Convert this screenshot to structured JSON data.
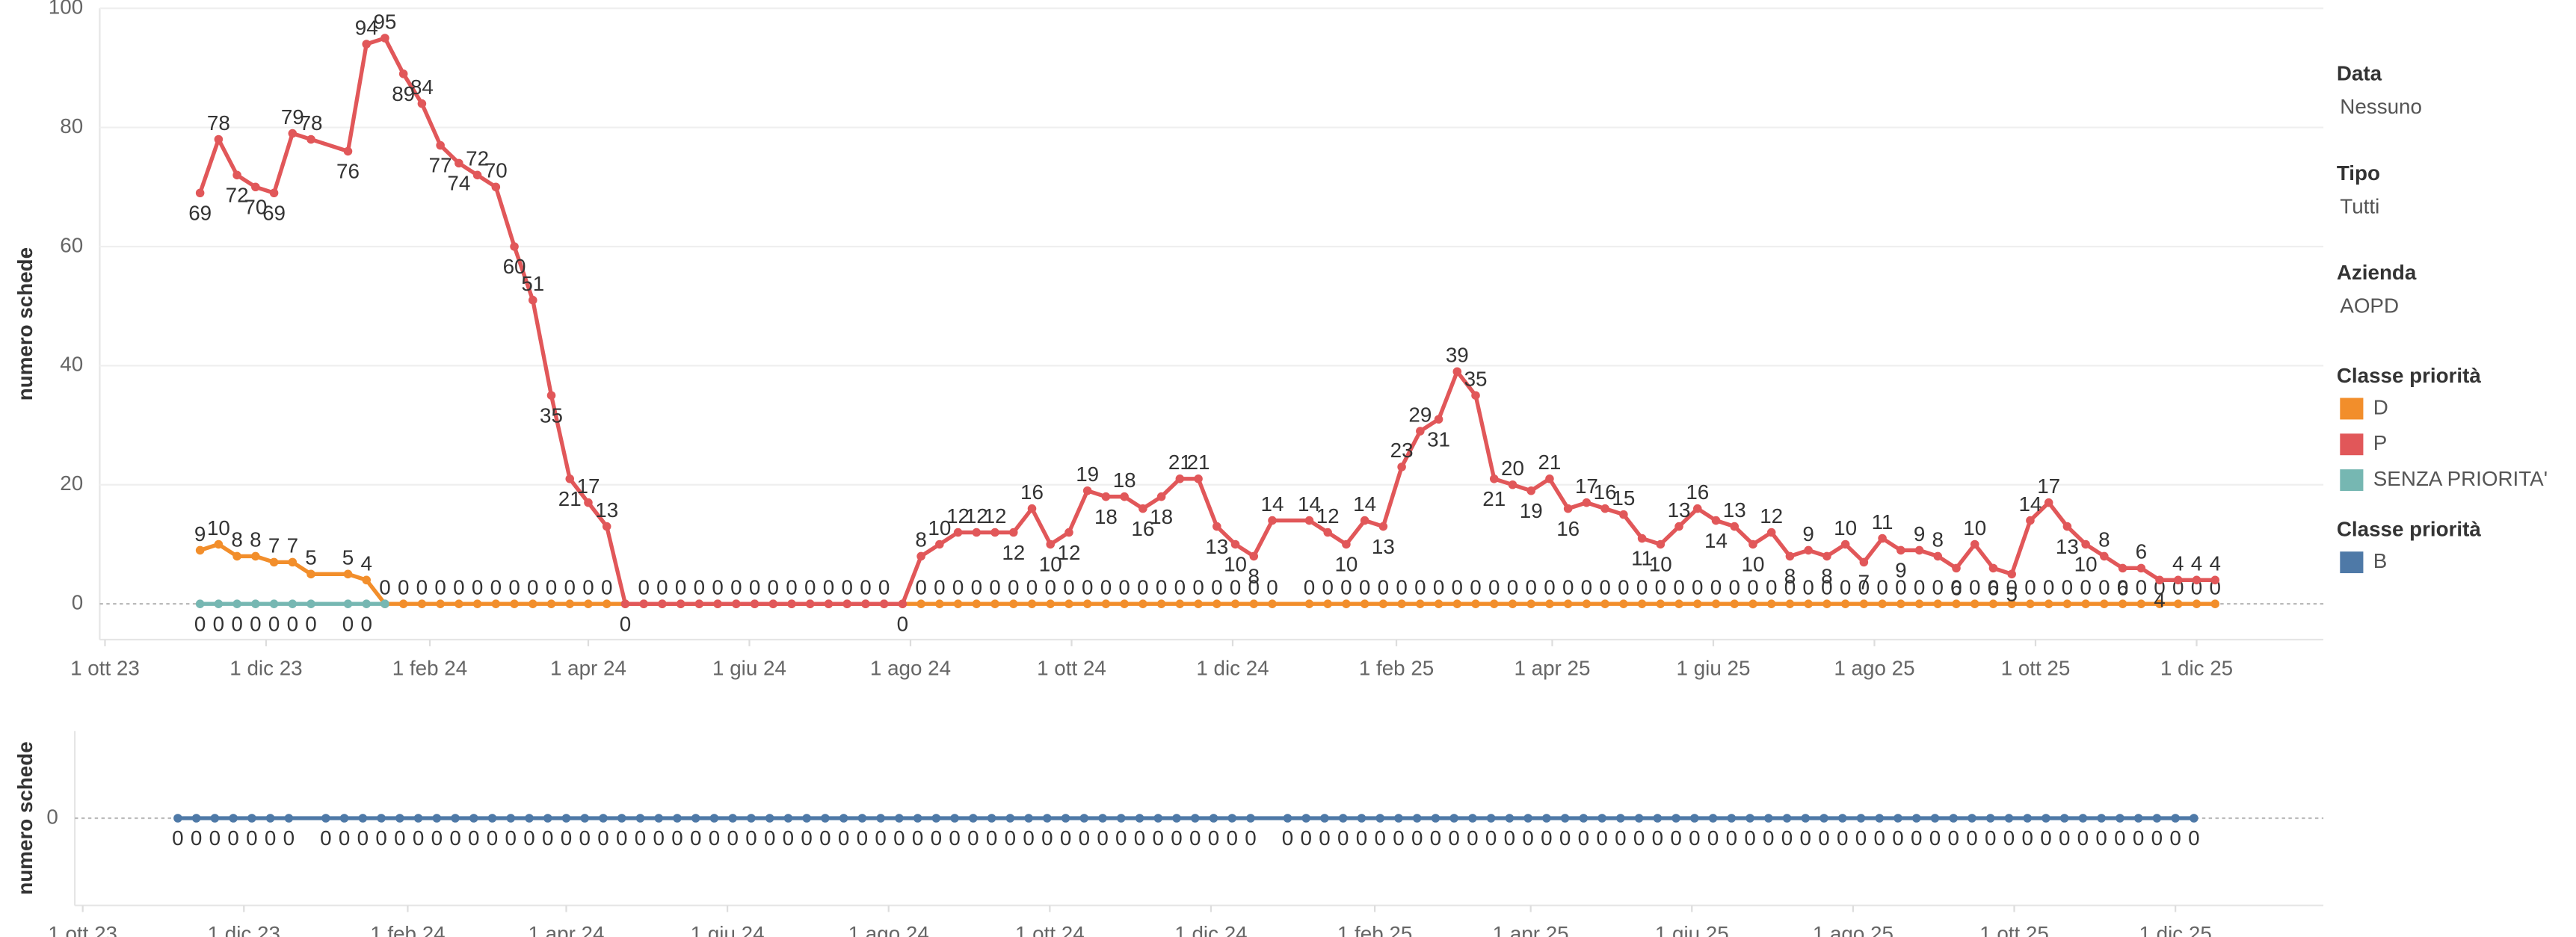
{
  "filters": [
    {
      "label": "Data",
      "value": "Nessuno"
    },
    {
      "label": "Tipo",
      "value": "Tutti"
    },
    {
      "label": "Azienda",
      "value": "AOPD"
    }
  ],
  "chart_data": [
    {
      "type": "line",
      "y_label": "numero schede",
      "legend_title": "Classe priorità",
      "x": [
        "2023-11-06",
        "2023-11-13",
        "2023-11-20",
        "2023-11-27",
        "2023-12-04",
        "2023-12-11",
        "2023-12-18",
        "2024-01-01",
        "2024-01-08",
        "2024-01-15",
        "2024-01-22",
        "2024-01-29",
        "2024-02-05",
        "2024-02-12",
        "2024-02-19",
        "2024-02-26",
        "2024-03-04",
        "2024-03-11",
        "2024-03-18",
        "2024-03-25",
        "2024-04-01",
        "2024-04-08",
        "2024-04-15",
        "2024-04-22",
        "2024-04-29",
        "2024-05-06",
        "2024-05-13",
        "2024-05-20",
        "2024-05-27",
        "2024-06-03",
        "2024-06-10",
        "2024-06-17",
        "2024-06-24",
        "2024-07-01",
        "2024-07-08",
        "2024-07-15",
        "2024-07-22",
        "2024-07-29",
        "2024-08-05",
        "2024-08-12",
        "2024-08-19",
        "2024-08-26",
        "2024-09-02",
        "2024-09-09",
        "2024-09-16",
        "2024-09-23",
        "2024-09-30",
        "2024-10-07",
        "2024-10-14",
        "2024-10-21",
        "2024-10-28",
        "2024-11-04",
        "2024-11-11",
        "2024-11-18",
        "2024-11-25",
        "2024-12-02",
        "2024-12-09",
        "2024-12-16",
        "2024-12-30",
        "2025-01-06",
        "2025-01-13",
        "2025-01-20",
        "2025-01-27",
        "2025-02-03",
        "2025-02-10",
        "2025-02-17",
        "2025-02-24",
        "2025-03-03",
        "2025-03-10",
        "2025-03-17",
        "2025-03-24",
        "2025-03-31",
        "2025-04-07",
        "2025-04-14",
        "2025-04-21",
        "2025-04-28",
        "2025-05-05",
        "2025-05-12",
        "2025-05-19",
        "2025-05-26",
        "2025-06-02",
        "2025-06-09",
        "2025-06-16",
        "2025-06-23",
        "2025-06-30",
        "2025-07-07",
        "2025-07-14",
        "2025-07-21",
        "2025-07-28",
        "2025-08-04",
        "2025-08-11",
        "2025-08-18",
        "2025-08-25",
        "2025-09-01",
        "2025-09-08",
        "2025-09-15",
        "2025-09-22",
        "2025-09-29",
        "2025-10-06",
        "2025-10-13",
        "2025-10-20",
        "2025-10-27",
        "2025-11-03",
        "2025-11-10",
        "2025-11-17",
        "2025-11-24",
        "2025-12-01",
        "2025-12-08"
      ],
      "series": [
        {
          "name": "D",
          "color": "#f28e2b",
          "values": [
            9,
            10,
            8,
            8,
            7,
            7,
            5,
            5,
            4,
            0,
            0,
            0,
            0,
            0,
            0,
            0,
            0,
            0,
            0,
            0,
            0,
            0,
            0,
            0,
            0,
            0,
            0,
            0,
            0,
            0,
            0,
            0,
            0,
            0,
            0,
            0,
            0,
            0,
            0,
            0,
            0,
            0,
            0,
            0,
            0,
            0,
            0,
            0,
            0,
            0,
            0,
            0,
            0,
            0,
            0,
            0,
            0,
            0,
            0,
            0,
            0,
            0,
            0,
            0,
            0,
            0,
            0,
            0,
            0,
            0,
            0,
            0,
            0,
            0,
            0,
            0,
            0,
            0,
            0,
            0,
            0,
            0,
            0,
            0,
            0,
            0,
            0,
            0,
            0,
            0,
            0,
            0,
            0,
            0,
            0,
            0,
            0,
            0,
            0,
            0,
            0,
            0,
            0,
            0,
            0,
            0,
            0,
            0
          ]
        },
        {
          "name": "P",
          "color": "#e15759",
          "values": [
            69,
            78,
            72,
            70,
            69,
            79,
            78,
            76,
            94,
            95,
            89,
            84,
            77,
            74,
            72,
            70,
            60,
            51,
            35,
            21,
            17,
            13,
            0,
            0,
            0,
            0,
            0,
            0,
            0,
            0,
            0,
            0,
            0,
            0,
            0,
            0,
            0,
            0,
            8,
            10,
            12,
            12,
            12,
            12,
            16,
            10,
            12,
            19,
            18,
            18,
            16,
            18,
            21,
            21,
            13,
            10,
            8,
            14,
            14,
            12,
            10,
            14,
            13,
            23,
            29,
            31,
            39,
            35,
            21,
            20,
            19,
            21,
            16,
            17,
            16,
            15,
            11,
            10,
            13,
            16,
            14,
            13,
            10,
            12,
            8,
            9,
            8,
            10,
            7,
            11,
            9,
            9,
            8,
            6,
            10,
            6,
            5,
            14,
            17,
            13,
            10,
            8,
            6,
            6,
            4,
            4,
            4,
            4
          ]
        },
        {
          "name": "SENZA PRIORITA'",
          "color": "#76b7b2",
          "values": [
            0,
            0,
            0,
            0,
            0,
            0,
            0,
            0,
            0,
            0,
            null,
            null,
            null,
            null,
            null,
            null,
            null,
            null,
            null,
            null,
            null,
            null,
            null,
            null,
            null,
            null,
            null,
            null,
            null,
            null,
            null,
            null,
            null,
            null,
            null,
            null,
            null,
            null,
            null,
            null,
            null,
            null,
            null,
            null,
            null,
            null,
            null,
            null,
            null,
            null,
            null,
            null,
            null,
            null,
            null,
            null,
            null,
            null,
            null,
            null,
            null,
            null,
            null,
            null,
            null,
            null,
            null,
            null,
            null,
            null,
            null,
            null,
            null,
            null,
            null,
            null,
            null,
            null,
            null,
            null,
            null,
            null,
            null,
            null,
            null,
            null,
            null,
            null,
            null,
            null,
            null,
            null,
            null,
            null,
            null,
            null,
            null,
            null,
            null,
            null,
            null,
            null,
            null,
            null,
            null,
            null,
            null,
            null
          ]
        }
      ],
      "ylim": [
        -6,
        100
      ],
      "yticks": [
        0,
        20,
        40,
        60,
        80,
        100
      ],
      "grid": true,
      "xlim": [
        "2023-09-29",
        "2026-01-18"
      ],
      "xticks": [
        {
          "value": "2023-10-01",
          "label": "1 ott 23"
        },
        {
          "value": "2023-12-01",
          "label": "1 dic 23"
        },
        {
          "value": "2024-02-01",
          "label": "1 feb 24"
        },
        {
          "value": "2024-04-01",
          "label": "1 apr 24"
        },
        {
          "value": "2024-06-01",
          "label": "1 giu 24"
        },
        {
          "value": "2024-08-01",
          "label": "1 ago 24"
        },
        {
          "value": "2024-10-01",
          "label": "1 ott 24"
        },
        {
          "value": "2024-12-01",
          "label": "1 dic 24"
        },
        {
          "value": "2025-02-01",
          "label": "1 feb 25"
        },
        {
          "value": "2025-04-01",
          "label": "1 apr 25"
        },
        {
          "value": "2025-06-01",
          "label": "1 giu 25"
        },
        {
          "value": "2025-08-01",
          "label": "1 ago 25"
        },
        {
          "value": "2025-10-01",
          "label": "1 ott 25"
        },
        {
          "value": "2025-12-01",
          "label": "1 dic 25"
        }
      ]
    },
    {
      "type": "line",
      "y_label": "numero schede",
      "legend_title": "Classe priorità",
      "x": [
        "2023-11-06",
        "2023-11-13",
        "2023-11-20",
        "2023-11-27",
        "2023-12-04",
        "2023-12-11",
        "2023-12-18",
        "2024-01-01",
        "2024-01-08",
        "2024-01-15",
        "2024-01-22",
        "2024-01-29",
        "2024-02-05",
        "2024-02-12",
        "2024-02-19",
        "2024-02-26",
        "2024-03-04",
        "2024-03-11",
        "2024-03-18",
        "2024-03-25",
        "2024-04-01",
        "2024-04-08",
        "2024-04-15",
        "2024-04-22",
        "2024-04-29",
        "2024-05-06",
        "2024-05-13",
        "2024-05-20",
        "2024-05-27",
        "2024-06-03",
        "2024-06-10",
        "2024-06-17",
        "2024-06-24",
        "2024-07-01",
        "2024-07-08",
        "2024-07-15",
        "2024-07-22",
        "2024-07-29",
        "2024-08-05",
        "2024-08-12",
        "2024-08-19",
        "2024-08-26",
        "2024-09-02",
        "2024-09-09",
        "2024-09-16",
        "2024-09-23",
        "2024-09-30",
        "2024-10-07",
        "2024-10-14",
        "2024-10-21",
        "2024-10-28",
        "2024-11-04",
        "2024-11-11",
        "2024-11-18",
        "2024-11-25",
        "2024-12-02",
        "2024-12-09",
        "2024-12-16",
        "2024-12-30",
        "2025-01-06",
        "2025-01-13",
        "2025-01-20",
        "2025-01-27",
        "2025-02-03",
        "2025-02-10",
        "2025-02-17",
        "2025-02-24",
        "2025-03-03",
        "2025-03-10",
        "2025-03-17",
        "2025-03-24",
        "2025-03-31",
        "2025-04-07",
        "2025-04-14",
        "2025-04-21",
        "2025-04-28",
        "2025-05-05",
        "2025-05-12",
        "2025-05-19",
        "2025-05-26",
        "2025-06-02",
        "2025-06-09",
        "2025-06-16",
        "2025-06-23",
        "2025-06-30",
        "2025-07-07",
        "2025-07-14",
        "2025-07-21",
        "2025-07-28",
        "2025-08-04",
        "2025-08-11",
        "2025-08-18",
        "2025-08-25",
        "2025-09-01",
        "2025-09-08",
        "2025-09-15",
        "2025-09-22",
        "2025-09-29",
        "2025-10-06",
        "2025-10-13",
        "2025-10-20",
        "2025-10-27",
        "2025-11-03",
        "2025-11-10",
        "2025-11-17",
        "2025-11-24",
        "2025-12-01",
        "2025-12-08"
      ],
      "series": [
        {
          "name": "B",
          "color": "#4e79a7",
          "values": [
            0,
            0,
            0,
            0,
            0,
            0,
            0,
            0,
            0,
            0,
            0,
            0,
            0,
            0,
            0,
            0,
            0,
            0,
            0,
            0,
            0,
            0,
            0,
            0,
            0,
            0,
            0,
            0,
            0,
            0,
            0,
            0,
            0,
            0,
            0,
            0,
            0,
            0,
            0,
            0,
            0,
            0,
            0,
            0,
            0,
            0,
            0,
            0,
            0,
            0,
            0,
            0,
            0,
            0,
            0,
            0,
            0,
            0,
            0,
            0,
            0,
            0,
            0,
            0,
            0,
            0,
            0,
            0,
            0,
            0,
            0,
            0,
            0,
            0,
            0,
            0,
            0,
            0,
            0,
            0,
            0,
            0,
            0,
            0,
            0,
            0,
            0,
            0,
            0,
            0,
            0,
            0,
            0,
            0,
            0,
            0,
            0,
            0,
            0,
            0,
            0,
            0,
            0,
            0,
            0,
            0,
            0,
            0
          ]
        }
      ],
      "ylim": [
        -1,
        1
      ],
      "yticks": [
        0
      ],
      "grid": true,
      "xlim": [
        "2023-09-28",
        "2026-01-26"
      ],
      "xticks": [
        {
          "value": "2023-10-01",
          "label": "1 ott 23"
        },
        {
          "value": "2023-12-01",
          "label": "1 dic 23"
        },
        {
          "value": "2024-02-01",
          "label": "1 feb 24"
        },
        {
          "value": "2024-04-01",
          "label": "1 apr 24"
        },
        {
          "value": "2024-06-01",
          "label": "1 giu 24"
        },
        {
          "value": "2024-08-01",
          "label": "1 ago 24"
        },
        {
          "value": "2024-10-01",
          "label": "1 ott 24"
        },
        {
          "value": "2024-12-01",
          "label": "1 dic 24"
        },
        {
          "value": "2025-02-01",
          "label": "1 feb 25"
        },
        {
          "value": "2025-04-01",
          "label": "1 apr 25"
        },
        {
          "value": "2025-06-01",
          "label": "1 giu 25"
        },
        {
          "value": "2025-08-01",
          "label": "1 ago 25"
        },
        {
          "value": "2025-10-01",
          "label": "1 ott 25"
        },
        {
          "value": "2025-12-01",
          "label": "1 dic 25"
        }
      ]
    }
  ]
}
